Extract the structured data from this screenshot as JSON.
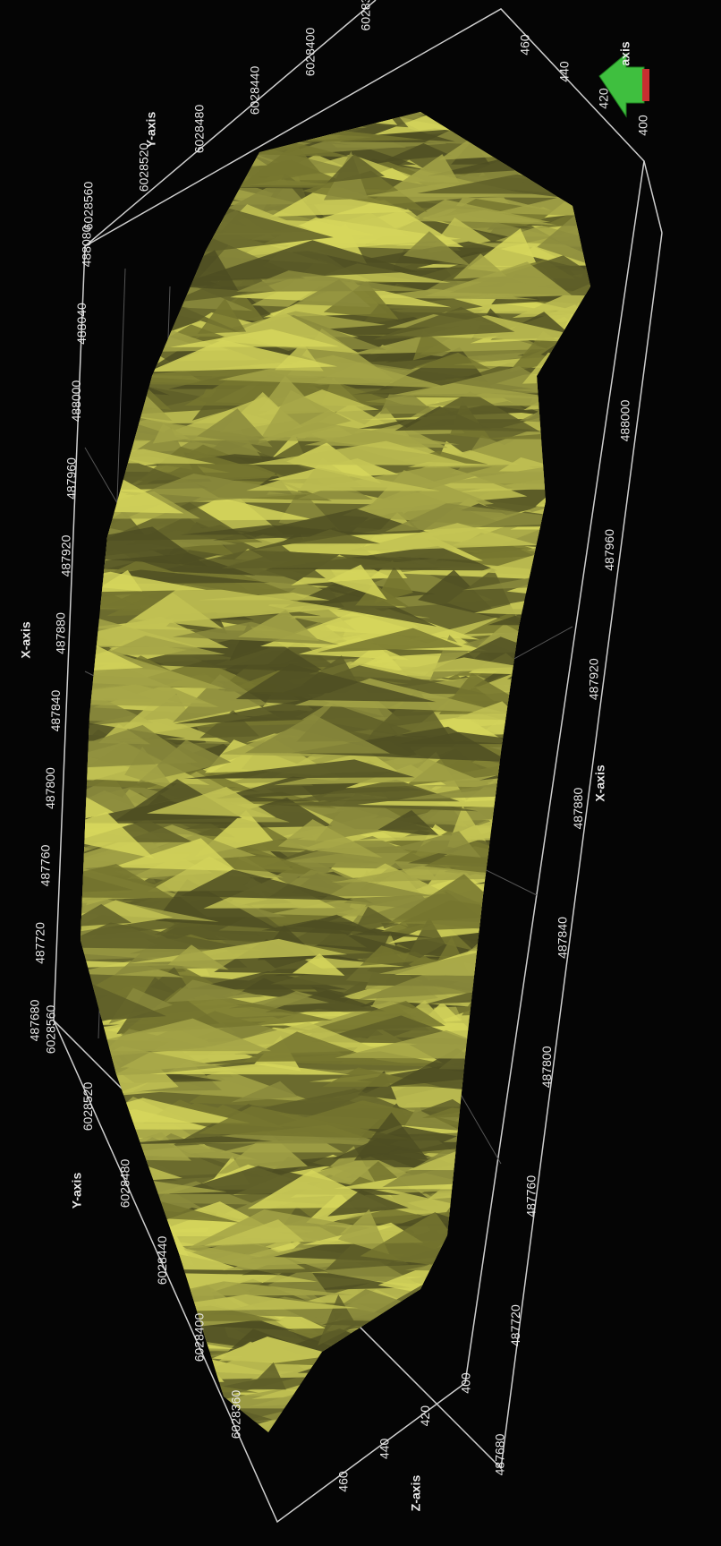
{
  "axes": {
    "x_left": {
      "title": "X-axis",
      "ticks": [
        487680,
        487720,
        487760,
        487800,
        487840,
        487880,
        487920,
        487960,
        488000,
        488040,
        488080
      ]
    },
    "y_top": {
      "title": "Y-axis",
      "ticks": [
        6028560,
        6028520,
        6028480,
        6028440,
        6028400,
        "60283"
      ]
    },
    "z_top": {
      "title": "axis",
      "ticks": [
        460,
        440,
        420,
        400
      ]
    },
    "y_bottom": {
      "title": "Y-axis",
      "ticks": [
        6028560,
        6028520,
        6028480,
        6028440,
        6028400,
        6028360
      ]
    },
    "z_bottom": {
      "title": "Z-axis",
      "ticks": [
        460,
        440,
        420,
        400
      ]
    },
    "x_right": {
      "title": "X-axis",
      "ticks": [
        487680,
        487720,
        487760,
        487800,
        487840,
        487880,
        487920,
        487960,
        488000
      ]
    }
  }
}
